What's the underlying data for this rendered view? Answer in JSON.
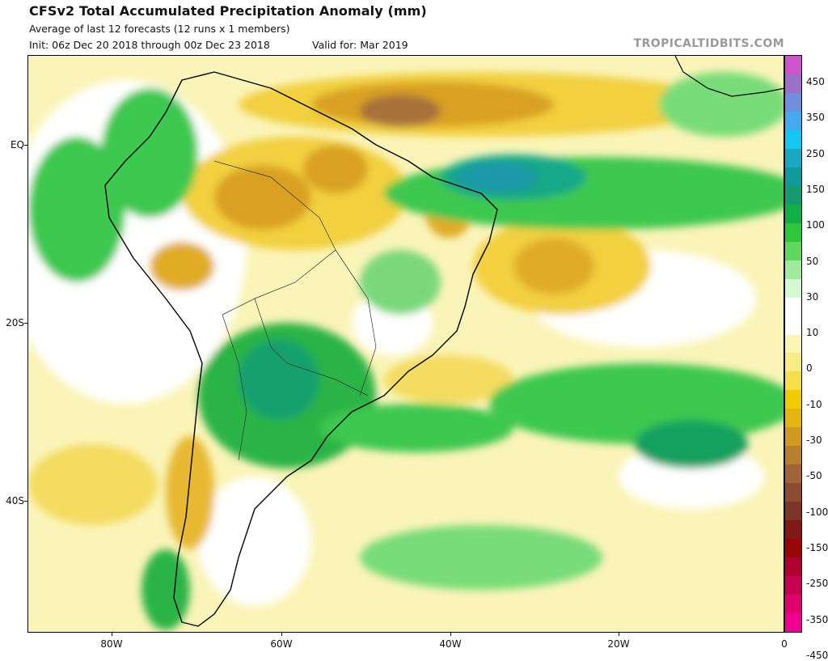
{
  "header": {
    "title": "CFSv2 Total Accumulated Precipitation Anomaly (mm)",
    "subtitle": "Average of last 12 forecasts (12 runs x 1 members)",
    "init": "Init: 06z Dec 20 2018 through 00z Dec 23 2018",
    "valid": "Valid for: Mar 2019",
    "brand": "TROPICALTIDBITS.COM"
  },
  "axes": {
    "lon_labels": [
      "80W",
      "60W",
      "40W",
      "20W",
      "0"
    ],
    "lat_labels": [
      "EQ",
      "20S",
      "40S"
    ]
  },
  "colorbar": {
    "labels": [
      "450",
      "350",
      "250",
      "150",
      "100",
      "50",
      "30",
      "10",
      "0",
      "-10",
      "-30",
      "-50",
      "-100",
      "-150",
      "-250",
      "-350",
      "-450"
    ],
    "colors": [
      "#cc55cc",
      "#9a70c8",
      "#6f8fdc",
      "#44aaee",
      "#11c8f0",
      "#1aa8c0",
      "#109a9a",
      "#139a6e",
      "#11b044",
      "#2cc83a",
      "#60d860",
      "#a0eaa0",
      "#d4f8d4",
      "#ffffff",
      "#ffffff",
      "#fbf6b4",
      "#f8ec86",
      "#f6de4a",
      "#f0cc00",
      "#e4b410",
      "#d09a20",
      "#b8802c",
      "#a06438",
      "#8c4c34",
      "#7c3426",
      "#801818",
      "#9a0606",
      "#b00030",
      "#c80050",
      "#e00070",
      "#f00090"
    ]
  }
}
